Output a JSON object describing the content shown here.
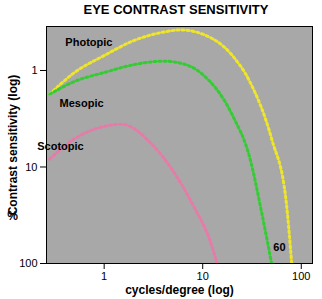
{
  "chart_data": {
    "type": "line",
    "title": "EYE CONTRAST SENSITIVITY",
    "x_label": "cycles/degree (log)",
    "y_label": "Contrast sensitivity (log)",
    "log": true,
    "grid": false,
    "xlim": [
      0.26,
      130
    ],
    "ylim": [
      100,
      0.35
    ],
    "xticks": [
      1,
      10,
      100
    ],
    "yticks": [
      1,
      10,
      100
    ],
    "series": [
      {
        "name": "Photopic",
        "color": "#f0e628",
        "line_style": "dotted",
        "x": [
          0.28,
          0.5,
          1,
          2,
          4,
          6,
          10,
          20,
          30,
          50,
          70,
          80
        ],
        "values": [
          1.76,
          1.05,
          0.7,
          0.49,
          0.4,
          0.38,
          0.42,
          0.7,
          1.3,
          5.1,
          22,
          100
        ]
      },
      {
        "name": "Mesopic",
        "color": "#33cc33",
        "line_style": "dotted",
        "x": [
          0.28,
          0.5,
          1,
          2,
          4,
          6,
          10,
          20,
          30,
          40,
          50
        ],
        "values": [
          1.76,
          1.3,
          1.05,
          0.87,
          0.8,
          0.84,
          1.1,
          2.9,
          8,
          31,
          100
        ]
      },
      {
        "name": "Scotopic",
        "color": "#e87aa8",
        "line_style": "dotted",
        "x": [
          0.28,
          0.5,
          1,
          1.5,
          3,
          5,
          8,
          12,
          14
        ],
        "values": [
          8.3,
          5.1,
          3.8,
          3.6,
          5.7,
          11,
          25,
          60,
          100
        ]
      }
    ],
    "annotations": [
      {
        "text": "Photopic",
        "x": 0.7,
        "y": 0.51
      },
      {
        "text": "Mesopic",
        "x": 0.59,
        "y": 2.2
      },
      {
        "text": "Scotopic",
        "x": 0.36,
        "y": 6.1
      },
      {
        "text": "60",
        "x": 60,
        "y": 68
      },
      {
        "text": "%",
        "x": null,
        "y": 32
      }
    ]
  }
}
